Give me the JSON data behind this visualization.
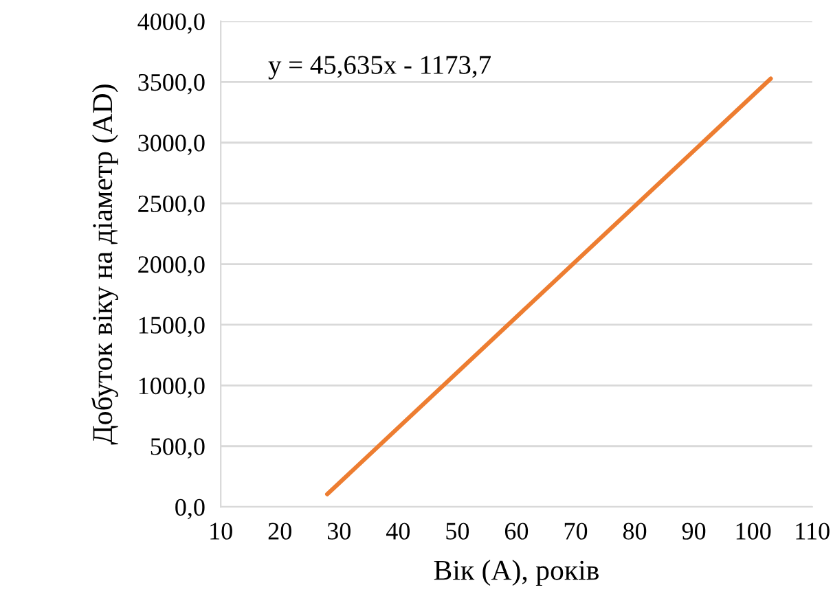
{
  "chart_data": {
    "type": "line",
    "xlabel": "Вік (А), років",
    "ylabel": "Добуток віку на діаметр (AD)",
    "series": [
      {
        "color": "#ed7d31",
        "x": [
          28,
          103
        ],
        "values": [
          104,
          3527
        ]
      }
    ],
    "xlim": [
      10,
      110
    ],
    "xticks": [
      10,
      20,
      30,
      40,
      50,
      60,
      70,
      80,
      90,
      100,
      110
    ],
    "ylim": [
      0,
      4000
    ],
    "yticks": [
      {
        "value": 0,
        "label": "0,0"
      },
      {
        "value": 500,
        "label": "500,0"
      },
      {
        "value": 1000,
        "label": "1000,0"
      },
      {
        "value": 1500,
        "label": "1500,0"
      },
      {
        "value": 2000,
        "label": "2000,0"
      },
      {
        "value": 2500,
        "label": "2500,0"
      },
      {
        "value": 3000,
        "label": "3000,0"
      },
      {
        "value": 3500,
        "label": "3500,0"
      },
      {
        "value": 4000,
        "label": "4000,0"
      }
    ],
    "grid": "y",
    "marker": "none",
    "line_style": "solid",
    "legend": false,
    "annotations": [
      "y = 45,635x - 1173,7"
    ]
  }
}
